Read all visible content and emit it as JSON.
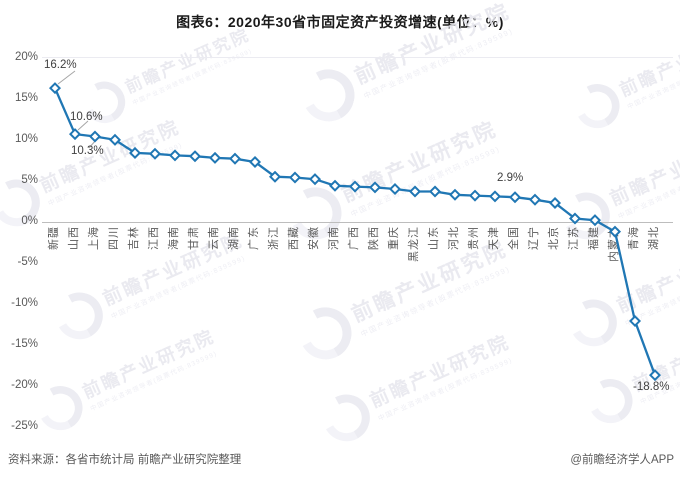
{
  "title": "图表6：2020年30省市固定资产投资增速(单位：%)",
  "source": {
    "left": "资料来源：各省市统计局 前瞻产业研究院整理",
    "right": "@前瞻经济学人APP"
  },
  "watermark": {
    "main": "前瞻产业研究院",
    "sub": "中国产业咨询领导者(股票代码:839599)"
  },
  "colors": {
    "line": "#2077b4",
    "marker_fill": "#ffffff",
    "axis_line": "#bdbdbd",
    "tick_text": "#595959",
    "data_label": "#3f3f3f",
    "title_text": "#1a1a1a"
  },
  "chart_data": {
    "type": "line",
    "title": "图表6：2020年30省市固定资产投资增速(单位：%)",
    "unit": "%",
    "marker": "diamond",
    "grid": false,
    "legend": "none",
    "ylim": [
      -25,
      20
    ],
    "yticks": [
      20,
      15,
      10,
      5,
      0,
      -5,
      -10,
      -15,
      -20,
      -25
    ],
    "ytick_suffix": "%",
    "categories": [
      "新疆",
      "山西",
      "上海",
      "四川",
      "吉林",
      "江西",
      "海南",
      "甘肃",
      "云南",
      "湖南",
      "广东",
      "浙江",
      "西藏",
      "安徽",
      "河南",
      "广西",
      "陕西",
      "重庆",
      "黑龙江",
      "山东",
      "河北",
      "贵州",
      "天津",
      "全国",
      "辽宁",
      "北京",
      "江苏",
      "福建",
      "内蒙古",
      "青海",
      "湖北"
    ],
    "values": [
      16.2,
      10.6,
      10.3,
      9.9,
      8.3,
      8.2,
      8.0,
      7.9,
      7.7,
      7.6,
      7.2,
      5.4,
      5.3,
      5.1,
      4.3,
      4.2,
      4.1,
      3.9,
      3.6,
      3.6,
      3.2,
      3.1,
      3.0,
      2.9,
      2.6,
      2.2,
      0.3,
      0.1,
      -1.3,
      -12.2,
      -18.8
    ],
    "point_labels": {
      "0": "16.2%",
      "1": "10.6%",
      "2": "10.3%",
      "23": "2.9%",
      "30": "-18.8%"
    }
  }
}
